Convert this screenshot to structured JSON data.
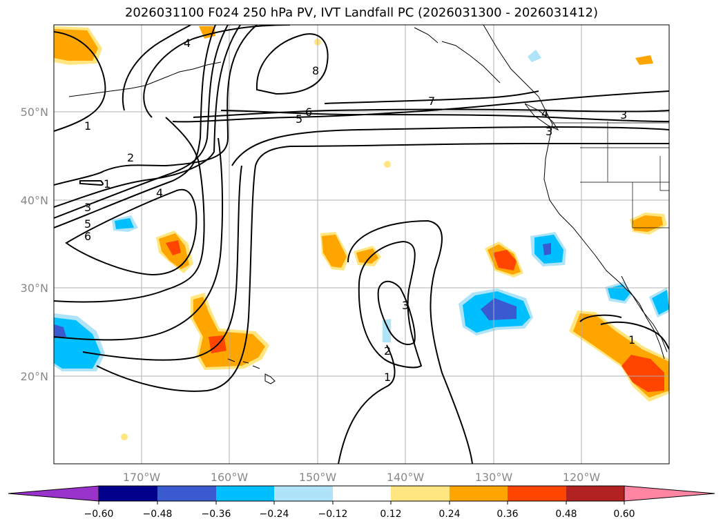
{
  "title": "2026031100 F024 250 hPa PV, IVT Landfall PC (2026031300 - 2026031412)",
  "map": {
    "lon_ticks": [
      "170°W",
      "160°W",
      "150°W",
      "140°W",
      "130°W",
      "120°W"
    ],
    "lat_ticks": [
      "50°N",
      "40°N",
      "30°N",
      "20°N"
    ]
  },
  "pv_contour_labels": [
    "1",
    "2",
    "1",
    "4",
    "3",
    "5",
    "6",
    "5",
    "6",
    "7",
    "4",
    "8",
    "3",
    "2",
    "1",
    "3",
    "1",
    "4",
    "3"
  ],
  "colorbar": {
    "ticks": [
      "−0.60",
      "−0.48",
      "−0.36",
      "−0.24",
      "−0.12",
      "0.12",
      "0.24",
      "0.36",
      "0.48",
      "0.60"
    ],
    "colors": [
      "#9933cc",
      "#00008b",
      "#3a5bcf",
      "#00bfff",
      "#aee3f8",
      "#ffffff",
      "#ffe680",
      "#ffa500",
      "#ff4500",
      "#b22222",
      "#ff85a2"
    ]
  }
}
